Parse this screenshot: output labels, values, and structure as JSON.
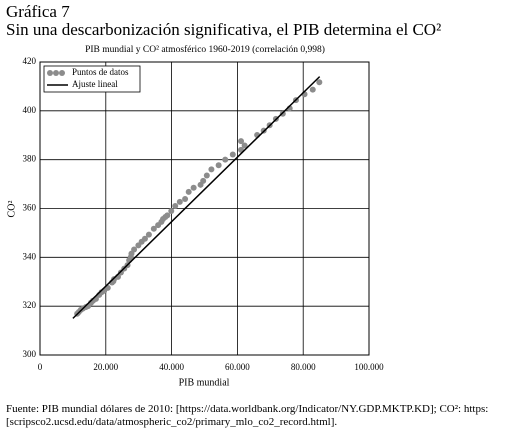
{
  "header": {
    "number": "Gráfica 7",
    "title": "Sin una descarbonización significativa, el PIB determina el CO²"
  },
  "chart_data": {
    "type": "scatter",
    "title": "PIB mundial y CO² atmosférico 1960-2019 (correlación 0,998)",
    "xlabel": "PIB mundial",
    "ylabel": "CO²",
    "xlim": [
      0,
      100000
    ],
    "ylim": [
      300,
      420
    ],
    "xticks": [
      0,
      {
        "value": 20000,
        "label": "20.000"
      },
      {
        "value": 40000,
        "label": "40.000"
      },
      {
        "value": 60000,
        "label": "60.000"
      },
      {
        "value": 80000,
        "label": "80.000"
      },
      {
        "value": 100000,
        "label": "100.000"
      }
    ],
    "yticks": [
      300,
      320,
      340,
      360,
      380,
      400,
      420
    ],
    "grid": true,
    "legend": "upper left",
    "series": [
      {
        "name": "Puntos de datos",
        "color": "#8c8c8c",
        "x": [
          11300,
          11800,
          12400,
          13000,
          13900,
          14600,
          15500,
          16100,
          17000,
          18000,
          18700,
          19500,
          20600,
          21900,
          22300,
          22500,
          23700,
          24600,
          25600,
          26600,
          27100,
          27600,
          27800,
          28600,
          29900,
          30900,
          31900,
          33100,
          34600,
          35900,
          36900,
          37400,
          38100,
          38700,
          39900,
          41100,
          42500,
          44100,
          45200,
          46700,
          48800,
          49600,
          50700,
          52100,
          54300,
          56300,
          58600,
          61100,
          62200,
          61100,
          66000,
          68000,
          69800,
          71700,
          73800,
          75900,
          77800,
          80400,
          82900,
          84900
        ],
        "values": [
          316.9,
          317.6,
          318.5,
          319.0,
          319.6,
          320.0,
          321.4,
          322.2,
          323.0,
          324.6,
          325.7,
          326.3,
          327.5,
          329.7,
          330.2,
          331.1,
          332.0,
          333.8,
          335.4,
          336.8,
          338.8,
          340.1,
          341.5,
          343.2,
          344.9,
          346.4,
          347.6,
          349.3,
          351.7,
          353.2,
          354.5,
          355.7,
          356.5,
          357.2,
          359.0,
          361.0,
          362.7,
          363.9,
          366.8,
          368.5,
          369.7,
          371.3,
          373.5,
          376.0,
          377.7,
          380.0,
          382.1,
          384.0,
          385.8,
          387.6,
          390.1,
          391.9,
          394.1,
          396.7,
          398.8,
          401.0,
          404.4,
          406.8,
          408.7,
          411.7
        ]
      }
    ],
    "fit": {
      "name": "Ajuste lineal",
      "color": "#000000",
      "x": [
        10000,
        85000
      ],
      "values": [
        315,
        414
      ]
    }
  },
  "source": "Fuente: PIB mundial dólares de 2010: [https://data.worldbank.org/Indicator/NY.GDP.MKTP.KD]; CO²: https: [scripsco2.ucsd.edu/data/atmospheric_co2/primary_mlo_co2_record.html]."
}
